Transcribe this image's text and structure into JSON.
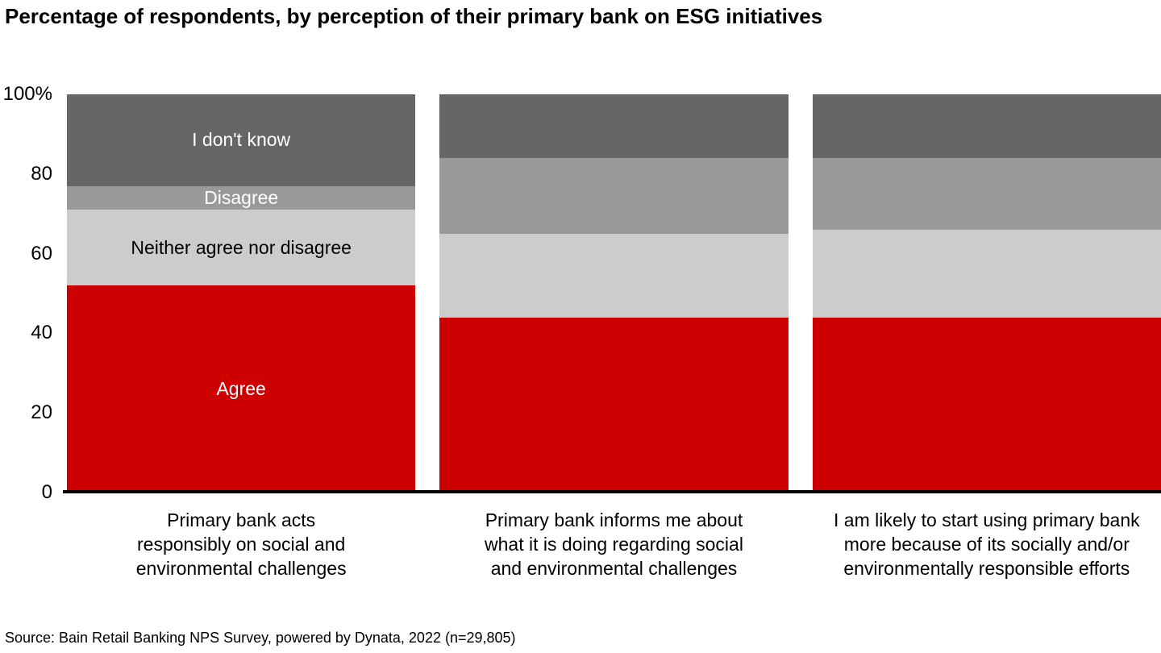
{
  "page": {
    "title": "Percentage of respondents, by perception of their primary bank on ESG initiatives",
    "source": "Source: Bain Retail Banking NPS Survey, powered by Dynata, 2022 (n=29,805)"
  },
  "y_axis": {
    "ticks": [
      {
        "label": "100%",
        "value": 100
      },
      {
        "label": "80",
        "value": 80
      },
      {
        "label": "60",
        "value": 60
      },
      {
        "label": "40",
        "value": 40
      },
      {
        "label": "20",
        "value": 20
      },
      {
        "label": "0",
        "value": 0
      }
    ]
  },
  "colors": {
    "agree": "#cc0000",
    "neither_agree_nor_disagree": "#cccccc",
    "disagree": "#999999",
    "dont_know": "#666666",
    "axis_line": "#000000",
    "background": "#ffffff",
    "text": "#000000"
  },
  "chart_data": {
    "type": "bar",
    "stacked": true,
    "units": "percent of respondents",
    "ylim": [
      0,
      100
    ],
    "grid": false,
    "legend_position": "labels inside first bar",
    "title": "Percentage of respondents, by perception of their primary bank on ESG initiatives",
    "categories": [
      "Primary bank acts\nresponsibly on social and\nenvironmental challenges",
      "Primary bank informs me about\nwhat it is doing regarding social\nand environmental challenges",
      "I am likely to start using primary bank\nmore because of its socially and/or\nenvironmentally responsible efforts"
    ],
    "series": [
      {
        "key": "agree",
        "name": "Agree",
        "color": "#cc0000",
        "label_color": "#ffffff",
        "values": [
          52,
          44,
          44
        ]
      },
      {
        "key": "neither-agree-nor-disagree",
        "name": "Neither agree nor disagree",
        "color": "#cccccc",
        "label_color": "#000000",
        "values": [
          19,
          21,
          22
        ]
      },
      {
        "key": "disagree",
        "name": "Disagree",
        "color": "#999999",
        "label_color": "#ffffff",
        "values": [
          6,
          19,
          18
        ]
      },
      {
        "key": "dont-know",
        "name": "I don't know",
        "color": "#666666",
        "label_color": "#ffffff",
        "values": [
          23,
          16,
          16
        ]
      }
    ],
    "label_category_index": 0
  }
}
